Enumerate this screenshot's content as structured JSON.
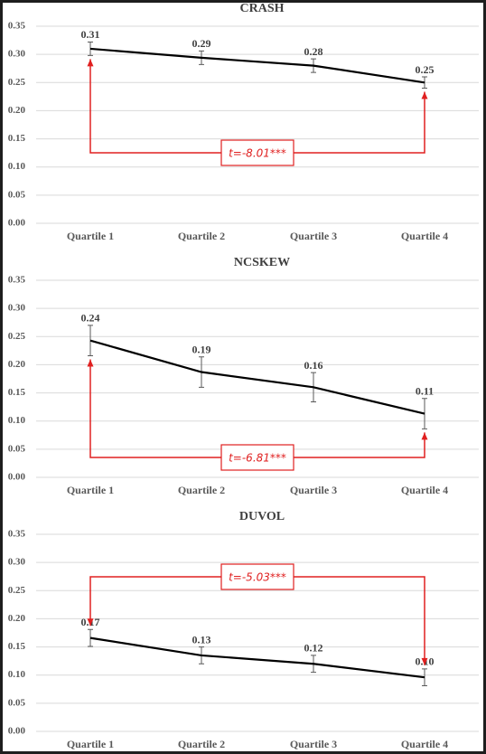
{
  "chart_data": [
    {
      "type": "line",
      "title": "CRASH",
      "categories": [
        "Quartile 1",
        "Quartile 2",
        "Quartile 3",
        "Quartile 4"
      ],
      "series": [
        {
          "color": "#000000",
          "values": [
            0.31,
            0.294,
            0.28,
            0.25
          ],
          "value_labels": [
            "0.31",
            "0.29",
            "0.28",
            "0.25"
          ],
          "errors": [
            0.012,
            0.012,
            0.012,
            0.01
          ]
        }
      ],
      "ylim": [
        0,
        0.35
      ],
      "yticks": [
        {
          "value": 0,
          "label": "0.00"
        },
        {
          "value": 0.05,
          "label": "0.05"
        },
        {
          "value": 0.1,
          "label": "0.10"
        },
        {
          "value": 0.15,
          "label": "0.15"
        },
        {
          "value": 0.2,
          "label": "0.20"
        },
        {
          "value": 0.25,
          "label": "0.25"
        },
        {
          "value": 0.3,
          "label": "0.30"
        },
        {
          "value": 0.35,
          "label": "0.35"
        }
      ],
      "grid": true,
      "annotation": "t=-8.01***"
    },
    {
      "type": "line",
      "title": "NCSKEW",
      "categories": [
        "Quartile 1",
        "Quartile 2",
        "Quartile 3",
        "Quartile 4"
      ],
      "series": [
        {
          "color": "#000000",
          "values": [
            0.243,
            0.187,
            0.16,
            0.113
          ],
          "value_labels": [
            "0.24",
            "0.19",
            "0.16",
            "0.11"
          ],
          "errors": [
            0.027,
            0.027,
            0.026,
            0.027
          ]
        }
      ],
      "ylim": [
        0,
        0.35
      ],
      "yticks": [
        {
          "value": 0,
          "label": "0.00"
        },
        {
          "value": 0.05,
          "label": "0.05"
        },
        {
          "value": 0.1,
          "label": "0.10"
        },
        {
          "value": 0.15,
          "label": "0.15"
        },
        {
          "value": 0.2,
          "label": "0.20"
        },
        {
          "value": 0.25,
          "label": "0.25"
        },
        {
          "value": 0.3,
          "label": "0.30"
        },
        {
          "value": 0.35,
          "label": "0.35"
        }
      ],
      "grid": true,
      "annotation": "t=-6.81***"
    },
    {
      "type": "line",
      "title": "DUVOL",
      "categories": [
        "Quartile 1",
        "Quartile 2",
        "Quartile 3",
        "Quartile 4"
      ],
      "series": [
        {
          "color": "#000000",
          "values": [
            0.166,
            0.135,
            0.12,
            0.096
          ],
          "value_labels": [
            "0.17",
            "0.13",
            "0.12",
            "0.10"
          ],
          "errors": [
            0.015,
            0.015,
            0.015,
            0.015
          ]
        }
      ],
      "ylim": [
        0,
        0.35
      ],
      "yticks": [
        {
          "value": 0,
          "label": "0.00"
        },
        {
          "value": 0.05,
          "label": "0.05"
        },
        {
          "value": 0.1,
          "label": "0.10"
        },
        {
          "value": 0.15,
          "label": "0.15"
        },
        {
          "value": 0.2,
          "label": "0.20"
        },
        {
          "value": 0.25,
          "label": "0.25"
        },
        {
          "value": 0.3,
          "label": "0.30"
        },
        {
          "value": 0.35,
          "label": "0.35"
        }
      ],
      "grid": true,
      "annotation": "t=-5.03***"
    }
  ]
}
